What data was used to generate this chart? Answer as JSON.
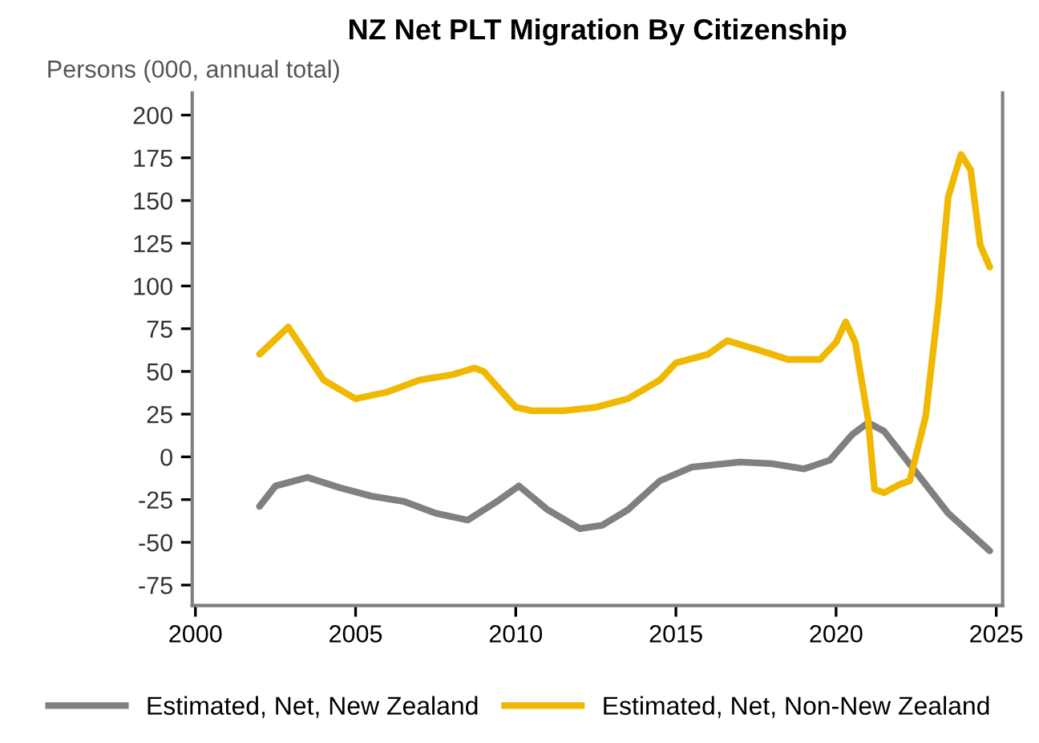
{
  "chart_data": {
    "type": "line",
    "title": "NZ Net PLT Migration By Citizenship",
    "ylabel": "Persons (000, annual total)",
    "xlim": [
      1999.9,
      2025.2
    ],
    "xticks": [
      2000,
      2005,
      2010,
      2015,
      2020,
      2025
    ],
    "ylim": [
      -87,
      213
    ],
    "yticks": [
      -75,
      -50,
      -25,
      0,
      25,
      50,
      75,
      100,
      125,
      150,
      175,
      200
    ],
    "grid": false,
    "legend": "bottom",
    "marker": "none",
    "line_style": "solid",
    "series": [
      {
        "name": "Estimated, Net, New Zealand",
        "color": "#808080",
        "x": [
          2002,
          2002.5,
          2003.5,
          2004.5,
          2005.5,
          2006.5,
          2007.5,
          2008.5,
          2009.5,
          2010.1,
          2011,
          2012,
          2012.7,
          2013.5,
          2014.5,
          2015.5,
          2017,
          2018,
          2019,
          2019.8,
          2020.5,
          2021,
          2021.5,
          2022.5,
          2023.5,
          2024.8
        ],
        "values": [
          -29,
          -17,
          -12,
          -18,
          -23,
          -26,
          -33,
          -37,
          -25,
          -17,
          -31,
          -42,
          -40,
          -31,
          -14,
          -6,
          -3,
          -4,
          -7,
          -2,
          13,
          20,
          15,
          -9,
          -33,
          -55
        ]
      },
      {
        "name": "Estimated, Net, Non-New Zealand",
        "color": "#f0b800",
        "x": [
          2002,
          2002.9,
          2004,
          2005,
          2006,
          2007,
          2008,
          2008.7,
          2009,
          2010,
          2010.5,
          2011.5,
          2012.5,
          2013.5,
          2014.5,
          2015,
          2016,
          2016.6,
          2017.5,
          2018.5,
          2019.5,
          2020,
          2020.3,
          2020.6,
          2021,
          2021.2,
          2021.5,
          2022,
          2022.3,
          2022.8,
          2023.2,
          2023.5,
          2023.9,
          2024.2,
          2024.5,
          2024.8
        ],
        "values": [
          60,
          76,
          45,
          34,
          38,
          45,
          48,
          52,
          50,
          29,
          27,
          27,
          29,
          34,
          45,
          55,
          60,
          68,
          63,
          57,
          57,
          67,
          79,
          67,
          22,
          -19,
          -21,
          -16,
          -14,
          24,
          90,
          152,
          177,
          168,
          124,
          111
        ]
      }
    ]
  }
}
